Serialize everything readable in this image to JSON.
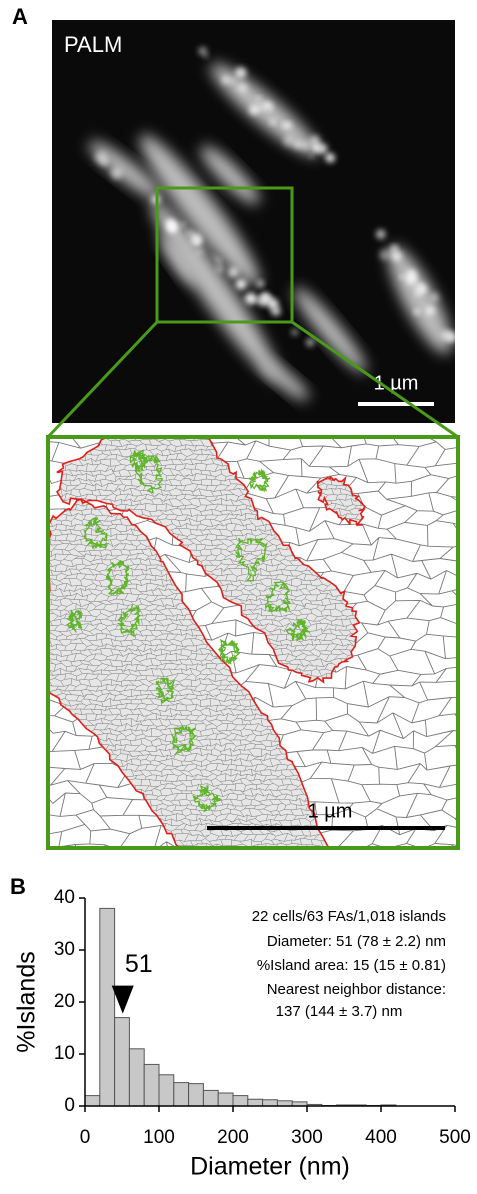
{
  "panel_a": {
    "label": "A",
    "image_label": "PALM",
    "scale_bar": "1 µm",
    "zoom_scale_bar": "1 µm"
  },
  "chart_data": {
    "type": "histogram",
    "panel_label": "B",
    "xlabel": "Diameter (nm)",
    "ylabel": "%Islands",
    "bins": [
      0,
      20,
      40,
      60,
      80,
      100,
      120,
      140,
      160,
      180,
      200,
      220,
      240,
      260,
      280,
      300,
      320,
      340,
      360,
      380,
      400,
      420
    ],
    "values": [
      2,
      38,
      17,
      11,
      8,
      6,
      4.5,
      4.3,
      3,
      2.5,
      2,
      1.3,
      1.2,
      1,
      0.8,
      0.3,
      0.1,
      0.2,
      0.2,
      0.1,
      0.2
    ],
    "color": "#c8c8c8",
    "xlim": [
      0,
      500
    ],
    "xticks": [
      0,
      100,
      200,
      300,
      400,
      500
    ],
    "ylim": [
      0,
      40
    ],
    "yticks": [
      0,
      10,
      20,
      30,
      40
    ],
    "arrow": {
      "value": 51
    },
    "annotations": [
      "22 cells/63 FAs/1,018 islands",
      "Diameter: 51 (78 ± 2.2) nm",
      "%Island area: 15 (15 ± 0.81)",
      "Nearest neighbor distance:",
      "137 (144 ± 3.7) nm"
    ]
  }
}
